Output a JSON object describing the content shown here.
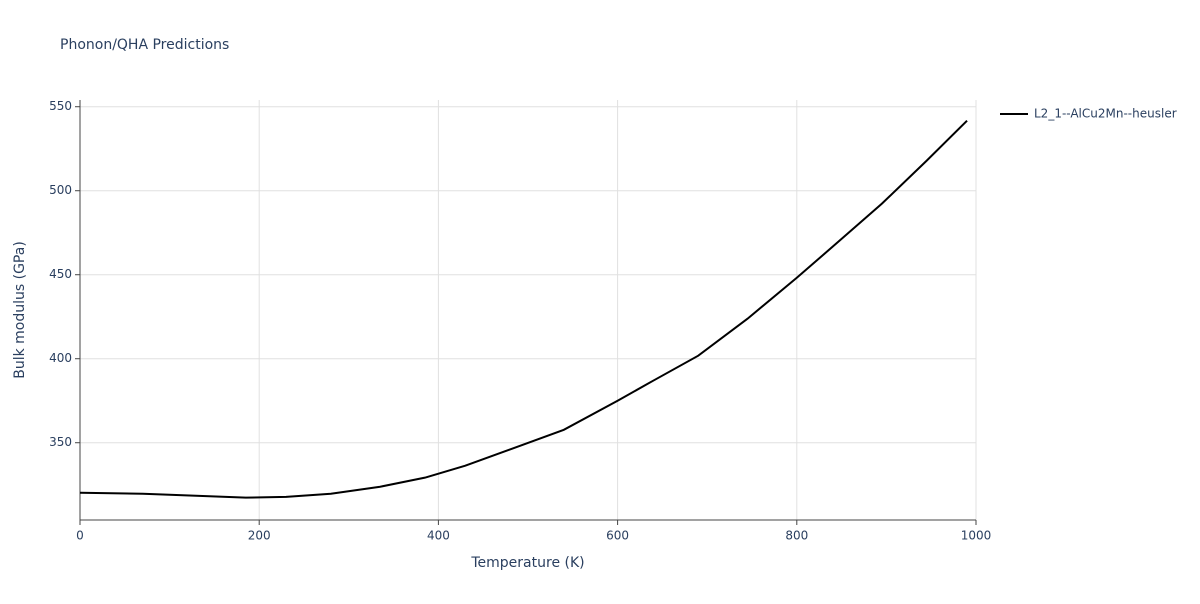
{
  "chart_data": {
    "type": "line",
    "title": "Phonon/QHA Predictions",
    "x_label": "Temperature (K)",
    "y_label": "Bulk modulus (GPa)",
    "x": [
      0,
      70,
      100,
      185,
      230,
      280,
      335,
      385,
      430,
      485,
      540,
      600,
      640,
      690,
      745,
      800,
      845,
      895,
      945,
      990
    ],
    "series": [
      {
        "name": "L2_1--AlCu2Mn--heusler",
        "color": "#000000",
        "values": [
          320.2,
          319.6,
          319,
          317.3,
          317.8,
          319.6,
          323.8,
          329.2,
          336.3,
          347,
          357.7,
          375,
          387,
          401.8,
          423.8,
          448.2,
          469,
          492.3,
          517.9,
          541.7
        ]
      }
    ],
    "xlim": [
      0,
      1000
    ],
    "xticks": [
      0,
      200,
      400,
      600,
      800,
      1000
    ],
    "ylim": [
      304,
      554
    ],
    "yticks": [
      350,
      400,
      450,
      500,
      550
    ],
    "grid": true,
    "legend": "right"
  }
}
